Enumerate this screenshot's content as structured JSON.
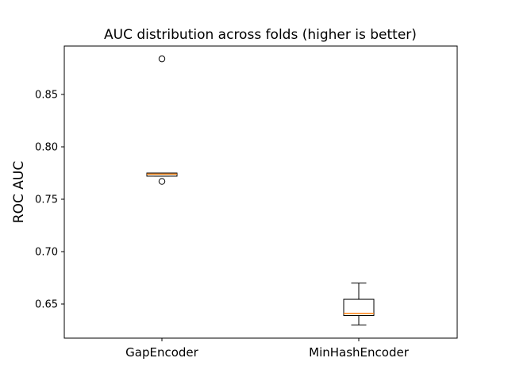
{
  "chart_data": {
    "type": "box",
    "title": "AUC distribution across folds (higher is better)",
    "xlabel": "",
    "ylabel": "ROC AUC",
    "categories": [
      "GapEncoder",
      "MinHashEncoder"
    ],
    "ylim": [
      0.6175,
      0.8965
    ],
    "yticks": [
      0.65,
      0.7,
      0.75,
      0.8,
      0.85
    ],
    "ytick_labels": [
      "0.65",
      "0.70",
      "0.75",
      "0.80",
      "0.85"
    ],
    "grid": false,
    "series": [
      {
        "name": "GapEncoder",
        "whisker_low": 0.772,
        "q1": 0.772,
        "median": 0.774,
        "q3": 0.775,
        "whisker_high": 0.775,
        "outliers": [
          0.884,
          0.767
        ]
      },
      {
        "name": "MinHashEncoder",
        "whisker_low": 0.63,
        "q1": 0.639,
        "median": 0.641,
        "q3": 0.6545,
        "whisker_high": 0.67,
        "outliers": []
      }
    ],
    "colors": {
      "box": "#000000",
      "median": "#ff7f0e"
    }
  }
}
